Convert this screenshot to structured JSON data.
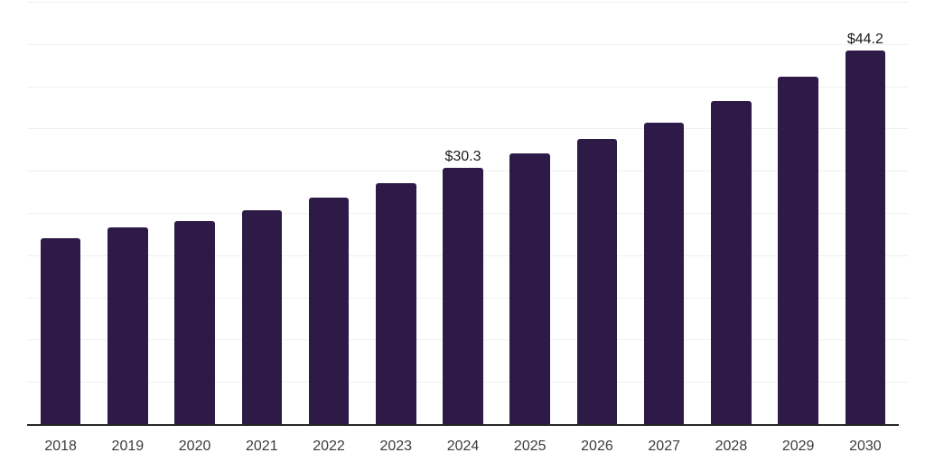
{
  "chart_data": {
    "type": "bar",
    "title": "",
    "xlabel": "",
    "ylabel": "",
    "categories": [
      "2018",
      "2019",
      "2020",
      "2021",
      "2022",
      "2023",
      "2024",
      "2025",
      "2026",
      "2027",
      "2028",
      "2029",
      "2030"
    ],
    "values": [
      22.0,
      23.3,
      24.0,
      25.3,
      26.8,
      28.5,
      30.3,
      32.1,
      33.8,
      35.7,
      38.2,
      41.1,
      44.2
    ],
    "data_labels": {
      "2024": "$30.3",
      "2030": "$44.2"
    },
    "ylim": [
      0,
      50
    ],
    "gridline_step": 5,
    "grid": true,
    "legend": false,
    "y_axis_ticks_visible": false,
    "colors": {
      "bar": "#2e1a47",
      "gridline": "#f0f0f1",
      "axis": "#262626",
      "tick_label": "#3b3b3b",
      "data_label": "#1a1a1a",
      "background": "#ffffff"
    }
  }
}
